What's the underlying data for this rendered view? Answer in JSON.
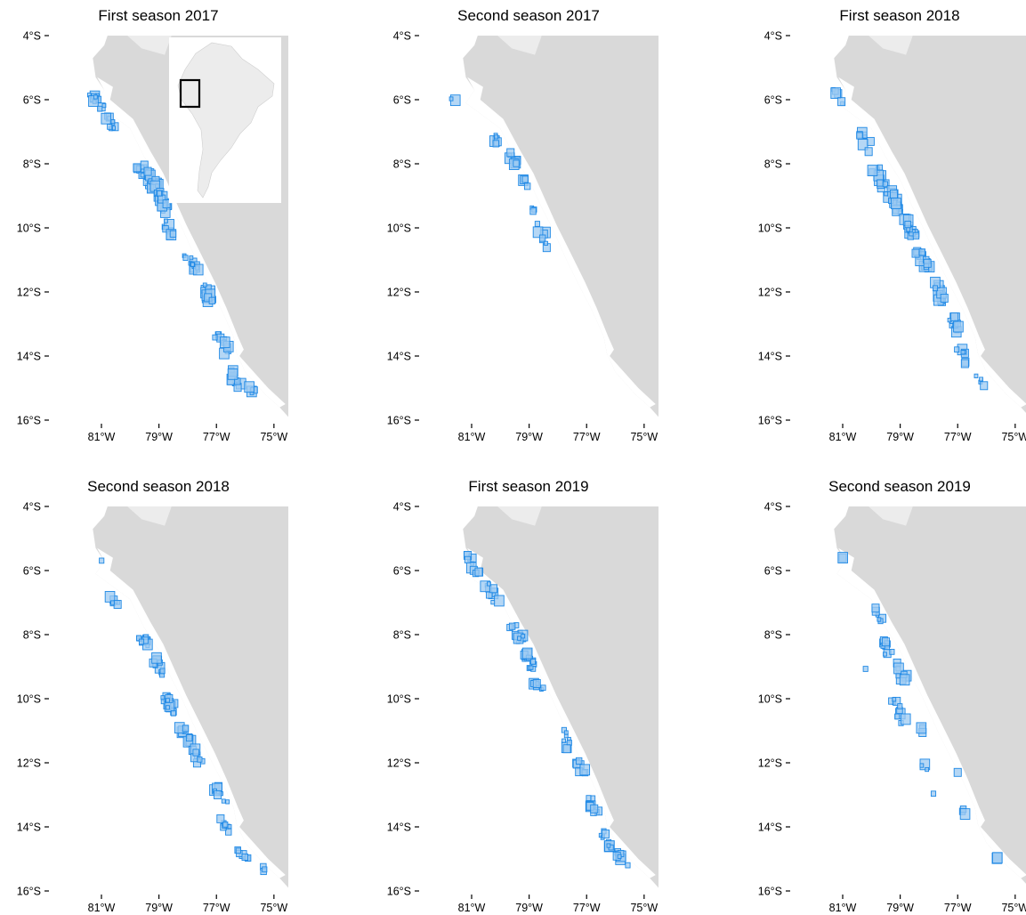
{
  "figure": {
    "colors": {
      "background": "#ffffff",
      "land_main": "#d9d9d9",
      "land_neighbor": "#ececec",
      "coastal_band": "#ffffff",
      "cell_fill": "#9ccaf2",
      "cell_stroke": "#1e88e5",
      "inset_background": "#ffffff",
      "inset_land": "#ececec",
      "inset_box": "#000000",
      "text": "#000000"
    },
    "axes": {
      "y_ticks": [
        "4°S",
        "6°S",
        "8°S",
        "10°S",
        "12°S",
        "14°S",
        "16°S"
      ],
      "x_ticks": [
        "81°W",
        "79°W",
        "77°W",
        "75°W"
      ],
      "lat_range": [
        -16,
        -4
      ],
      "lon_range": [
        -82.3,
        -74.5
      ]
    },
    "inset": {
      "label": "South America locator",
      "highlight_box_lon": [
        -82,
        -76
      ],
      "highlight_box_lat": [
        -16,
        -3
      ]
    },
    "panels": [
      {
        "title": "First season 2017",
        "id": "first-season-2017"
      },
      {
        "title": "Second season 2017",
        "id": "second-season-2017"
      },
      {
        "title": "First season 2018",
        "id": "first-season-2018"
      },
      {
        "title": "Second season 2018",
        "id": "second-season-2018"
      },
      {
        "title": "First season 2019",
        "id": "first-season-2019"
      },
      {
        "title": "Second season 2019",
        "id": "second-season-2019"
      }
    ]
  },
  "chart_data": {
    "type": "scatter",
    "description_units": "longitude (degrees, negative = W), latitude (degrees, negative = S)",
    "panels": [
      {
        "title": "First season 2017",
        "clusters": [
          {
            "lon": -81.1,
            "lat": -6.1,
            "n": 14,
            "spread": 0.35
          },
          {
            "lon": -80.7,
            "lat": -6.7,
            "n": 10,
            "spread": 0.25
          },
          {
            "lon": -79.4,
            "lat": -8.4,
            "n": 26,
            "spread": 0.45
          },
          {
            "lon": -78.9,
            "lat": -9.2,
            "n": 18,
            "spread": 0.35
          },
          {
            "lon": -78.7,
            "lat": -10.0,
            "n": 8,
            "spread": 0.25
          },
          {
            "lon": -77.9,
            "lat": -11.1,
            "n": 12,
            "spread": 0.3
          },
          {
            "lon": -77.3,
            "lat": -12.1,
            "n": 16,
            "spread": 0.35
          },
          {
            "lon": -76.8,
            "lat": -13.6,
            "n": 14,
            "spread": 0.35
          },
          {
            "lon": -76.4,
            "lat": -14.7,
            "n": 14,
            "spread": 0.35
          },
          {
            "lon": -75.8,
            "lat": -15.0,
            "n": 5,
            "spread": 0.2
          }
        ]
      },
      {
        "title": "Second season 2017",
        "clusters": [
          {
            "lon": -81.6,
            "lat": -6.1,
            "n": 2,
            "spread": 0.2
          },
          {
            "lon": -80.2,
            "lat": -7.2,
            "n": 6,
            "spread": 0.25
          },
          {
            "lon": -79.6,
            "lat": -7.8,
            "n": 8,
            "spread": 0.25
          },
          {
            "lon": -79.1,
            "lat": -8.6,
            "n": 4,
            "spread": 0.2
          },
          {
            "lon": -78.9,
            "lat": -9.3,
            "n": 3,
            "spread": 0.2
          },
          {
            "lon": -78.6,
            "lat": -10.1,
            "n": 6,
            "spread": 0.3
          },
          {
            "lon": -78.4,
            "lat": -10.6,
            "n": 2,
            "spread": 0.15
          }
        ]
      },
      {
        "title": "First season 2018",
        "clusters": [
          {
            "lon": -81.2,
            "lat": -5.9,
            "n": 6,
            "spread": 0.3
          },
          {
            "lon": -80.2,
            "lat": -7.3,
            "n": 8,
            "spread": 0.35
          },
          {
            "lon": -79.7,
            "lat": -8.4,
            "n": 14,
            "spread": 0.4
          },
          {
            "lon": -79.2,
            "lat": -9.2,
            "n": 18,
            "spread": 0.4
          },
          {
            "lon": -78.7,
            "lat": -10.0,
            "n": 18,
            "spread": 0.35
          },
          {
            "lon": -78.2,
            "lat": -11.0,
            "n": 18,
            "spread": 0.35
          },
          {
            "lon": -77.7,
            "lat": -12.0,
            "n": 14,
            "spread": 0.35
          },
          {
            "lon": -77.1,
            "lat": -13.0,
            "n": 10,
            "spread": 0.3
          },
          {
            "lon": -76.8,
            "lat": -14.0,
            "n": 8,
            "spread": 0.3
          },
          {
            "lon": -76.2,
            "lat": -14.8,
            "n": 4,
            "spread": 0.3
          }
        ]
      },
      {
        "title": "Second season 2018",
        "clusters": [
          {
            "lon": -81.0,
            "lat": -5.7,
            "n": 1,
            "spread": 0.05
          },
          {
            "lon": -80.6,
            "lat": -6.9,
            "n": 6,
            "spread": 0.25
          },
          {
            "lon": -79.5,
            "lat": -8.2,
            "n": 12,
            "spread": 0.3
          },
          {
            "lon": -79.0,
            "lat": -9.0,
            "n": 10,
            "spread": 0.3
          },
          {
            "lon": -78.6,
            "lat": -10.2,
            "n": 14,
            "spread": 0.35
          },
          {
            "lon": -78.1,
            "lat": -11.1,
            "n": 12,
            "spread": 0.35
          },
          {
            "lon": -77.7,
            "lat": -11.8,
            "n": 8,
            "spread": 0.3
          },
          {
            "lon": -76.9,
            "lat": -13.0,
            "n": 8,
            "spread": 0.3
          },
          {
            "lon": -76.7,
            "lat": -13.9,
            "n": 8,
            "spread": 0.3
          },
          {
            "lon": -76.1,
            "lat": -14.8,
            "n": 8,
            "spread": 0.3
          },
          {
            "lon": -75.3,
            "lat": -15.4,
            "n": 3,
            "spread": 0.2
          }
        ]
      },
      {
        "title": "First season 2019",
        "clusters": [
          {
            "lon": -81.0,
            "lat": -5.8,
            "n": 12,
            "spread": 0.35
          },
          {
            "lon": -80.3,
            "lat": -6.7,
            "n": 10,
            "spread": 0.35
          },
          {
            "lon": -79.4,
            "lat": -8.0,
            "n": 14,
            "spread": 0.35
          },
          {
            "lon": -79.0,
            "lat": -8.8,
            "n": 14,
            "spread": 0.35
          },
          {
            "lon": -78.6,
            "lat": -9.7,
            "n": 8,
            "spread": 0.3
          },
          {
            "lon": -77.7,
            "lat": -11.3,
            "n": 8,
            "spread": 0.35
          },
          {
            "lon": -77.2,
            "lat": -12.2,
            "n": 8,
            "spread": 0.3
          },
          {
            "lon": -76.8,
            "lat": -13.3,
            "n": 10,
            "spread": 0.3
          },
          {
            "lon": -76.3,
            "lat": -14.4,
            "n": 10,
            "spread": 0.3
          },
          {
            "lon": -75.8,
            "lat": -15.0,
            "n": 8,
            "spread": 0.3
          }
        ]
      },
      {
        "title": "Second season 2019",
        "clusters": [
          {
            "lon": -81.0,
            "lat": -5.6,
            "n": 2,
            "spread": 0.08
          },
          {
            "lon": -79.8,
            "lat": -7.4,
            "n": 6,
            "spread": 0.25
          },
          {
            "lon": -79.5,
            "lat": -8.4,
            "n": 10,
            "spread": 0.4
          },
          {
            "lon": -80.2,
            "lat": -9.1,
            "n": 1,
            "spread": 0.05
          },
          {
            "lon": -79.0,
            "lat": -9.2,
            "n": 8,
            "spread": 0.35
          },
          {
            "lon": -79.0,
            "lat": -10.4,
            "n": 10,
            "spread": 0.45
          },
          {
            "lon": -78.2,
            "lat": -11.0,
            "n": 3,
            "spread": 0.2
          },
          {
            "lon": -78.2,
            "lat": -12.0,
            "n": 3,
            "spread": 0.3
          },
          {
            "lon": -77.0,
            "lat": -12.3,
            "n": 1,
            "spread": 0.05
          },
          {
            "lon": -77.8,
            "lat": -13.0,
            "n": 1,
            "spread": 0.05
          },
          {
            "lon": -76.8,
            "lat": -13.5,
            "n": 3,
            "spread": 0.15
          },
          {
            "lon": -75.7,
            "lat": -14.9,
            "n": 2,
            "spread": 0.1
          }
        ]
      }
    ]
  }
}
